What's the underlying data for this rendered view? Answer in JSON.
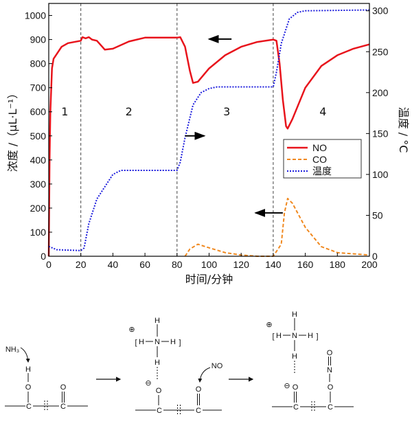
{
  "chart_data": {
    "type": "line",
    "xlabel": "时间/分钟",
    "ylabel": "浓度 /（μL·L⁻¹）",
    "y2label": "温度 / °C",
    "xlim": [
      0,
      200
    ],
    "ylim": [
      0,
      1050
    ],
    "y2lim": [
      0,
      309
    ],
    "xticks": [
      0,
      20,
      40,
      60,
      80,
      100,
      120,
      140,
      160,
      180,
      200
    ],
    "yticks": [
      0,
      100,
      200,
      300,
      400,
      500,
      600,
      700,
      800,
      900,
      1000
    ],
    "y2ticks": [
      0,
      50,
      100,
      150,
      200,
      250,
      300
    ],
    "grid": false,
    "legend_position": "center-right",
    "phase_lines_x": [
      20,
      80,
      140
    ],
    "phase_labels": [
      {
        "x": 10,
        "text": "1"
      },
      {
        "x": 50,
        "text": "2"
      },
      {
        "x": 111,
        "text": "3"
      },
      {
        "x": 171,
        "text": "4"
      }
    ],
    "series": [
      {
        "name": "NO",
        "axis": "left",
        "color": "#e8141c",
        "style": "solid",
        "x": [
          0,
          0.5,
          1,
          2,
          3,
          5,
          8,
          12,
          20,
          21,
          23,
          25,
          27,
          30,
          35,
          40,
          50,
          60,
          80,
          82,
          85,
          88,
          90,
          93,
          100,
          110,
          120,
          130,
          140,
          142,
          144,
          146,
          148,
          149,
          152,
          160,
          170,
          180,
          190,
          200
        ],
        "y": [
          0,
          400,
          600,
          780,
          820,
          840,
          870,
          885,
          895,
          910,
          905,
          910,
          900,
          895,
          858,
          862,
          892,
          908,
          908,
          910,
          870,
          770,
          720,
          725,
          780,
          835,
          870,
          890,
          900,
          895,
          800,
          650,
          540,
          530,
          570,
          700,
          790,
          835,
          862,
          880
        ]
      },
      {
        "name": "CO",
        "axis": "left",
        "color": "#f0881e",
        "style": "dashed",
        "x": [
          85,
          88,
          93,
          100,
          110,
          120,
          130,
          140,
          145,
          147,
          149,
          152,
          160,
          170,
          180,
          190,
          200
        ],
        "y": [
          0,
          30,
          50,
          35,
          15,
          5,
          0,
          0,
          50,
          180,
          240,
          220,
          120,
          40,
          15,
          10,
          5
        ]
      },
      {
        "name": "温度",
        "axis": "right",
        "color": "#1a1adc",
        "style": "dotted",
        "x": [
          0,
          5,
          20,
          22,
          25,
          30,
          35,
          40,
          45,
          80,
          82,
          85,
          90,
          95,
          100,
          105,
          140,
          142,
          145,
          150,
          155,
          160,
          200
        ],
        "y": [
          12,
          8,
          7,
          10,
          40,
          70,
          85,
          100,
          105,
          105,
          115,
          145,
          185,
          200,
          205,
          207,
          207,
          225,
          260,
          290,
          298,
          300,
          301
        ]
      }
    ],
    "annotations": [
      {
        "type": "arrow",
        "direction": "left",
        "x": [
          100,
          114
        ],
        "y": 902,
        "series": "NO"
      },
      {
        "type": "arrow",
        "direction": "right",
        "x": [
          85,
          97
        ],
        "y": 500,
        "series": "温度"
      },
      {
        "type": "arrow",
        "direction": "left",
        "x": [
          129,
          146
        ],
        "y": 180,
        "series": "CO"
      }
    ]
  },
  "scheme": {
    "reactant": "NH₃",
    "no": "NO",
    "H": "H",
    "N": "N",
    "O": "O",
    "C": "C",
    "plus": "⊕",
    "minus": "⊖",
    "lbr": "[",
    "rbr": "]"
  }
}
